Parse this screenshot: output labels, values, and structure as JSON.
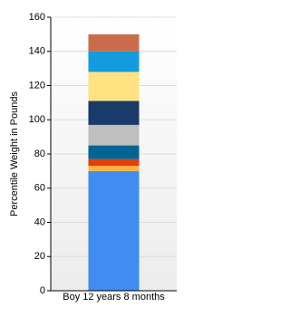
{
  "chart_data": {
    "type": "stacked_bar",
    "y_label": "Percentile Weight in Pounds",
    "categories": [
      "Boy 12 years 8 months"
    ],
    "series": [
      {
        "color": "#418cf0",
        "values": [
          70
        ]
      },
      {
        "color": "#fcb441",
        "values": [
          3
        ]
      },
      {
        "color": "#e0400a",
        "values": [
          4
        ]
      },
      {
        "color": "#056492",
        "values": [
          8
        ]
      },
      {
        "color": "#bfbfbf",
        "values": [
          12
        ]
      },
      {
        "color": "#1a3b69",
        "values": [
          14
        ]
      },
      {
        "color": "#ffe382",
        "values": [
          17
        ]
      },
      {
        "color": "#129cdd",
        "values": [
          12
        ]
      },
      {
        "color": "#ca6b4b",
        "values": [
          10
        ]
      }
    ],
    "ylim": [
      0,
      160
    ],
    "yticks": [
      0,
      20,
      40,
      60,
      80,
      100,
      120,
      140,
      160
    ],
    "grid": true
  }
}
